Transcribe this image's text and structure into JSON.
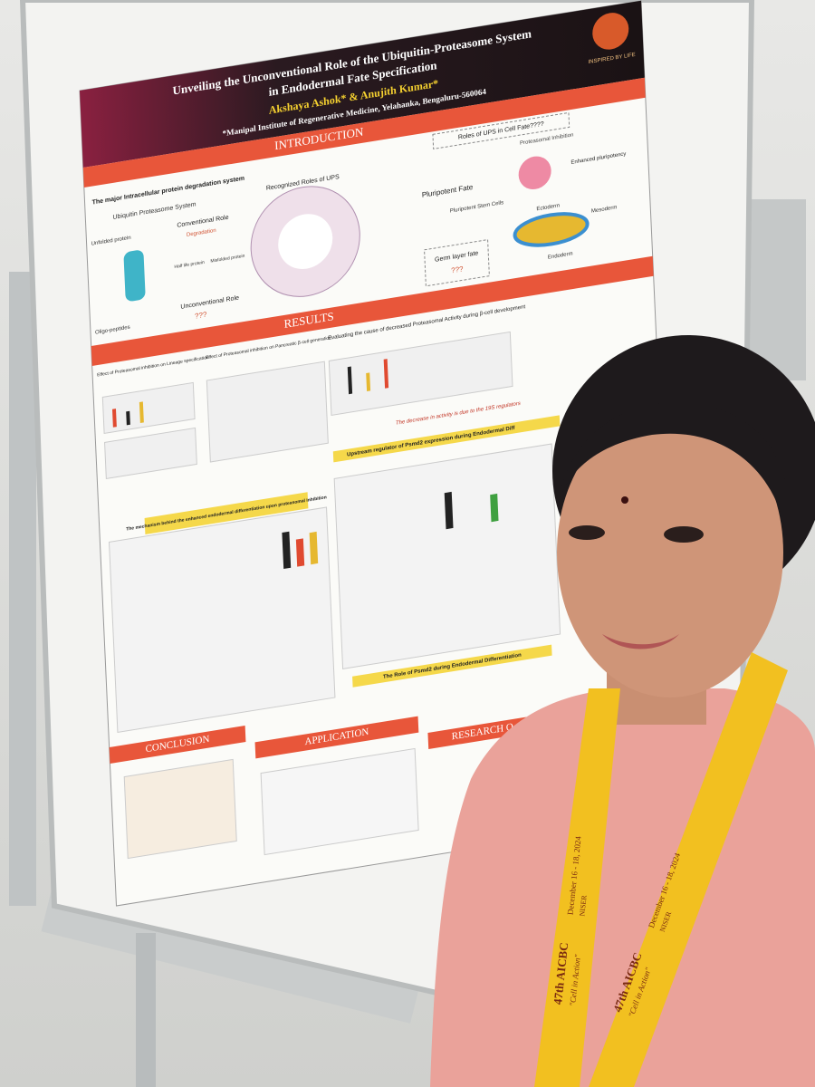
{
  "poster": {
    "title_lines": [
      "Unveiling the Unconventional Role of the Ubiquitin-Proteasome System",
      "in Endodermal Fate Specification"
    ],
    "authors": "Akshaya Ashok* & Anujith Kumar*",
    "affiliation": "*Manipal Institute of Regenerative Medicine, Yelahanka, Bengaluru-560064",
    "logo_text": "INSPIRED BY LIFE",
    "introduction": {
      "heading": "INTRODUCTION",
      "subtitle": "The major Intracellular protein degradation system",
      "ups": "Ubiquitin Proteasome System",
      "unfolded": "Unfolded protein",
      "oligo": "Oligo-peptides",
      "conventional": "Conventional Role",
      "degradation": "Degradation",
      "half_life": "Half life protein",
      "misfolded": "Misfolded protein",
      "unconventional": "Unconventional Role",
      "unknown": "???",
      "recognized": "Recognized Roles of UPS",
      "roles_cell_fate": "Roles of UPS in Cell Fate????",
      "inhibition": "Proteasomal Inhibition",
      "enhanced": "Enhanced pluripotency",
      "pluripotent_fate": "Pluripotent Fate",
      "psc": "Pluripotent Stem Cells",
      "germ_layer": "Germ layer fate",
      "ectoderm": "Ectoderm",
      "mesoderm": "Mesoderm",
      "endoderm": "Endoderm"
    },
    "results": {
      "heading": "RESULTS",
      "lineage": "Effect of Proteasomal inhibition on Lineage specification",
      "beta_cell": "Effect of Proteasomal inhibition on Pancreatic β-cell generation",
      "cause": "Evaluating the cause of decreased Proteasomal Activity during β-cell development",
      "regulators": "The decrease in activity is due to the 19S regulators",
      "upstream": "Upstream regulator of Psmd2 expression during Endodermal Diff",
      "mechanism": "The mechanism behind the enhanced endodermal differentiation upon proteasomal inhibition",
      "psmd2_role": "The Role of Psmd2 during Endodermal Differentiation"
    },
    "conclusion": "CONCLUSION",
    "application": "APPLICATION",
    "research": "RESEARCH O"
  },
  "lanyard": {
    "event": "47th AICBC",
    "motto": "\"Cell in Action\"",
    "dates": "December 16 - 18, 2024",
    "venue": "NISER"
  }
}
